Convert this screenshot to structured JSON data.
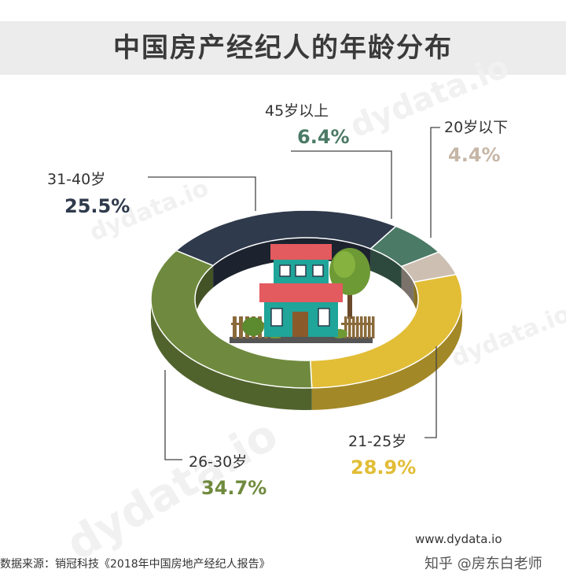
{
  "header": {
    "title": "中国房产经纪人的年龄分布"
  },
  "chart_data": {
    "type": "pie",
    "title": "中国房产经纪人的年龄分布",
    "categories": [
      "45岁以上",
      "20岁以下",
      "21-25岁",
      "26-30岁",
      "31-40岁"
    ],
    "values": [
      6.4,
      4.4,
      28.9,
      34.7,
      25.5
    ],
    "value_labels": [
      "6.4%",
      "4.4%",
      "28.9%",
      "34.7%",
      "25.5%"
    ],
    "colors": [
      "#4b7a66",
      "#cdbfb2",
      "#e2bd36",
      "#6f8a3e",
      "#2f3a4c"
    ]
  },
  "footer": {
    "source": "数据来源：销冠科技《2018年中国房地产经纪人报告》",
    "site": "www.dydata.io",
    "zhihu": "知乎 @房东白老师"
  },
  "watermark": {
    "text": "dydata.io"
  }
}
